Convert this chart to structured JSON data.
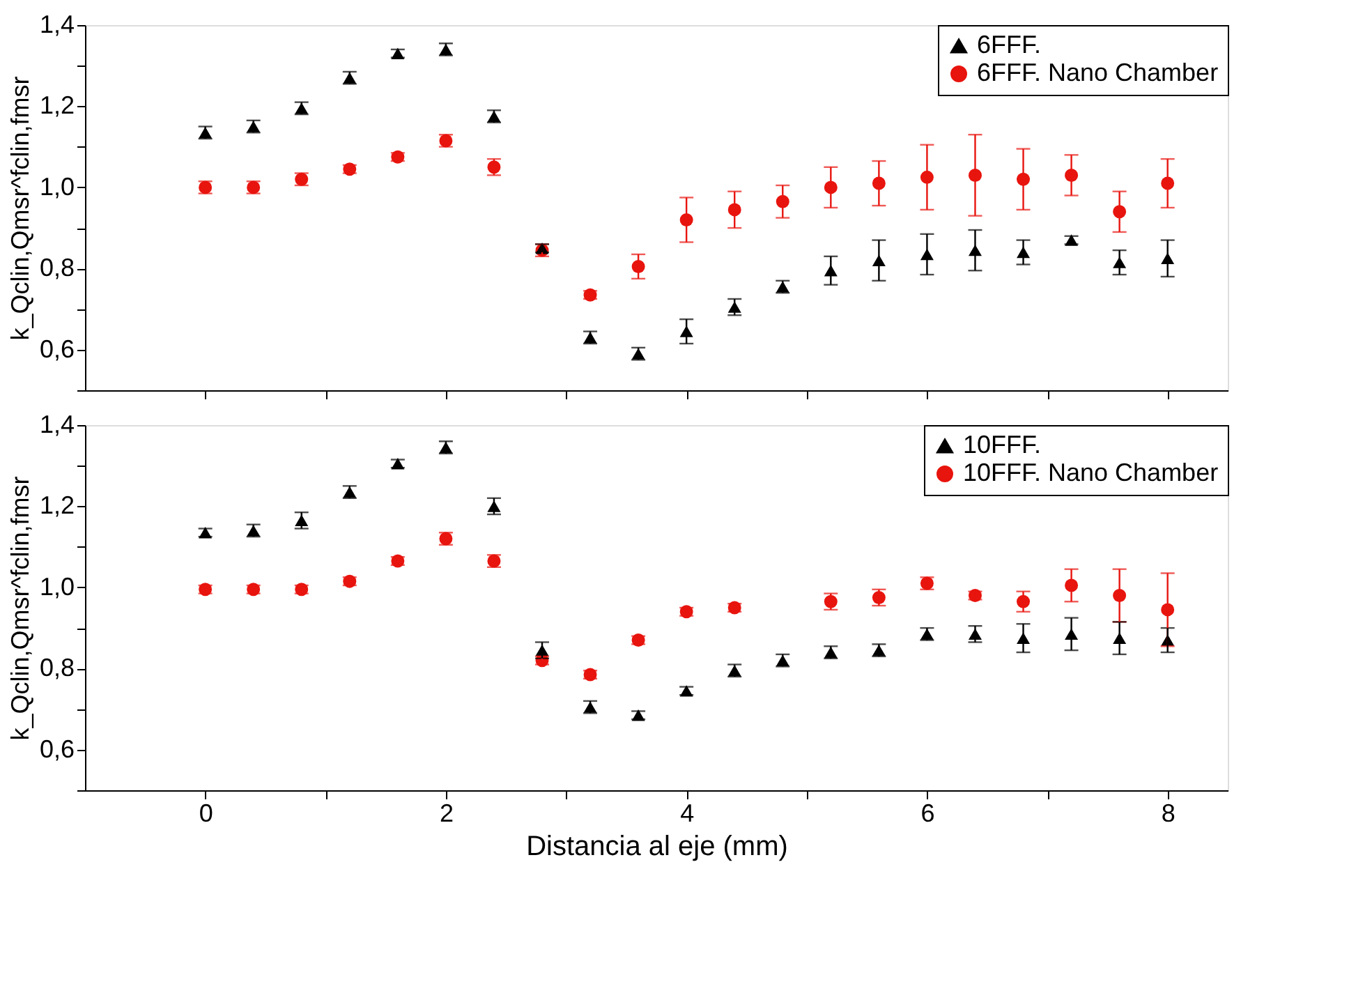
{
  "chart_data": [
    {
      "type": "scatter",
      "xlabel": null,
      "ylabel": "k_Qclin,Qmsr^fclin,fmsr",
      "tick_labels": "y",
      "legend": "top right",
      "grid": false,
      "x": [
        0,
        0.4,
        0.8,
        1.2,
        1.6,
        2.0,
        2.4,
        2.8,
        3.2,
        3.6,
        4.0,
        4.4,
        4.8,
        5.2,
        5.6,
        6.0,
        6.4,
        6.8,
        7.2,
        7.6,
        8.0
      ],
      "xlim": [
        -1,
        8.5
      ],
      "xticks": [
        0,
        {
          "value": 1,
          "label": null
        },
        2,
        {
          "value": 3,
          "label": null
        },
        4,
        {
          "value": 5,
          "label": null
        },
        6,
        {
          "value": 7,
          "label": null
        },
        8
      ],
      "ylim": [
        0.5,
        1.4
      ],
      "yticks": [
        {
          "value": 0.5,
          "label": null
        },
        {
          "value": 0.6,
          "label": "0,6"
        },
        {
          "value": 0.7,
          "label": null
        },
        {
          "value": 0.8,
          "label": "0,8"
        },
        {
          "value": 0.9,
          "label": null
        },
        {
          "value": 1.0,
          "label": "1,0"
        },
        {
          "value": 1.1,
          "label": null
        },
        {
          "value": 1.2,
          "label": "1,2"
        },
        {
          "value": 1.3,
          "label": null
        },
        {
          "value": 1.4,
          "label": "1,4"
        }
      ],
      "series": [
        {
          "name": "6FFF.",
          "color": "#000000",
          "marker": "triangle",
          "values": [
            1.135,
            1.15,
            1.195,
            1.27,
            1.33,
            1.34,
            1.175,
            0.85,
            0.63,
            0.59,
            0.645,
            0.705,
            0.755,
            0.795,
            0.82,
            0.835,
            0.845,
            0.84,
            0.87,
            0.815,
            0.825
          ],
          "errors": [
            0.015,
            0.015,
            0.015,
            0.015,
            0.01,
            0.015,
            0.015,
            0.01,
            0.015,
            0.015,
            0.03,
            0.02,
            0.015,
            0.035,
            0.05,
            0.05,
            0.05,
            0.03,
            0.01,
            0.03,
            0.045
          ]
        },
        {
          "name": "6FFF. Nano Chamber",
          "color": "#e8140e",
          "marker": "circle",
          "values": [
            1.0,
            1.0,
            1.02,
            1.045,
            1.075,
            1.115,
            1.05,
            0.845,
            0.735,
            0.805,
            0.92,
            0.945,
            0.965,
            1.0,
            1.01,
            1.025,
            1.03,
            1.02,
            1.03,
            0.94,
            1.01
          ],
          "errors": [
            0.015,
            0.015,
            0.015,
            0.01,
            0.01,
            0.015,
            0.02,
            0.015,
            0.01,
            0.03,
            0.055,
            0.045,
            0.04,
            0.05,
            0.055,
            0.08,
            0.1,
            0.075,
            0.05,
            0.05,
            0.06
          ]
        }
      ]
    },
    {
      "type": "scatter",
      "xlabel": "Distancia al eje (mm)",
      "ylabel": "k_Qclin,Qmsr^fclin,fmsr",
      "legend": "top right",
      "grid": false,
      "x": [
        0,
        0.4,
        0.8,
        1.2,
        1.6,
        2.0,
        2.4,
        2.8,
        3.2,
        3.6,
        4.0,
        4.4,
        4.8,
        5.2,
        5.6,
        6.0,
        6.4,
        6.8,
        7.2,
        7.6,
        8.0
      ],
      "xlim": [
        -1,
        8.5
      ],
      "xticks": [
        0,
        {
          "value": 1,
          "label": null
        },
        2,
        {
          "value": 3,
          "label": null
        },
        4,
        {
          "value": 5,
          "label": null
        },
        6,
        {
          "value": 7,
          "label": null
        },
        8
      ],
      "ylim": [
        0.5,
        1.4
      ],
      "yticks": [
        {
          "value": 0.5,
          "label": null
        },
        {
          "value": 0.6,
          "label": "0,6"
        },
        {
          "value": 0.7,
          "label": null
        },
        {
          "value": 0.8,
          "label": "0,8"
        },
        {
          "value": 0.9,
          "label": null
        },
        {
          "value": 1.0,
          "label": "1,0"
        },
        {
          "value": 1.1,
          "label": null
        },
        {
          "value": 1.2,
          "label": "1,2"
        },
        {
          "value": 1.3,
          "label": null
        },
        {
          "value": 1.4,
          "label": "1,4"
        }
      ],
      "series": [
        {
          "name": "10FFF.",
          "color": "#000000",
          "marker": "triangle",
          "values": [
            1.135,
            1.14,
            1.165,
            1.235,
            1.305,
            1.345,
            1.2,
            0.845,
            0.705,
            0.685,
            0.745,
            0.795,
            0.82,
            0.84,
            0.845,
            0.885,
            0.885,
            0.875,
            0.885,
            0.875,
            0.87
          ],
          "errors": [
            0.01,
            0.015,
            0.02,
            0.015,
            0.01,
            0.015,
            0.02,
            0.02,
            0.015,
            0.01,
            0.01,
            0.015,
            0.015,
            0.015,
            0.015,
            0.015,
            0.02,
            0.035,
            0.04,
            0.04,
            0.03
          ]
        },
        {
          "name": "10FFF. Nano Chamber",
          "color": "#e8140e",
          "marker": "circle",
          "values": [
            0.995,
            0.995,
            0.995,
            1.015,
            1.065,
            1.12,
            1.065,
            0.82,
            0.785,
            0.87,
            0.94,
            0.95,
            null,
            0.965,
            0.975,
            1.01,
            0.98,
            0.965,
            1.005,
            0.98,
            0.945
          ],
          "errors": [
            0.01,
            0.01,
            0.01,
            0.01,
            0.01,
            0.015,
            0.015,
            0.01,
            0.01,
            0.01,
            0.01,
            0.01,
            null,
            0.02,
            0.02,
            0.015,
            0.01,
            0.025,
            0.04,
            0.065,
            0.09
          ]
        }
      ]
    }
  ]
}
